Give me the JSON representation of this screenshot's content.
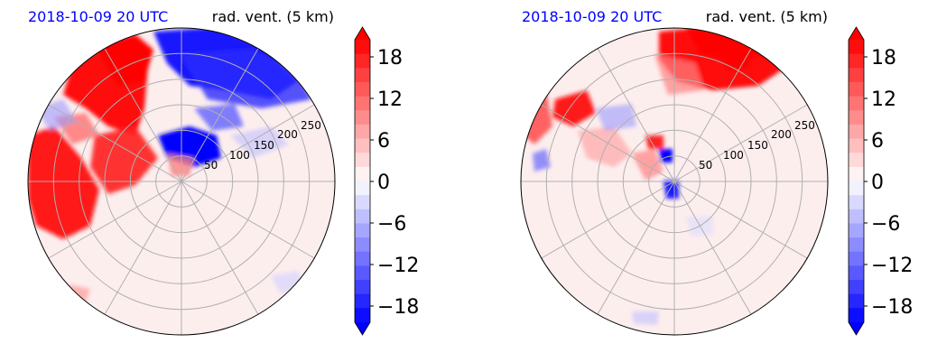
{
  "chart_data": [
    {
      "type": "heatmap",
      "projection": "polar",
      "title_left": "2018-10-09 20 UTC",
      "title_right": "rad. vent. (5 km)",
      "title_left_color": "#0000ff",
      "radial_ticks": [
        "50",
        "100",
        "150",
        "200",
        "250"
      ],
      "rlim": [
        0,
        300
      ],
      "grid": true,
      "colorbar": {
        "range": [
          -20,
          20
        ],
        "extend": "both",
        "ticks": [
          -18,
          -12,
          -6,
          0,
          6,
          12,
          18
        ],
        "tick_labels": [
          "−18",
          "−12",
          "−6",
          "0",
          "6",
          "12",
          "18"
        ],
        "cmap": "bwr",
        "levels": 20
      },
      "field_summary": {
        "positive_regions_deg": [
          [
            120,
            180
          ],
          [
            210,
            240
          ]
        ],
        "negative_regions_deg": [
          [
            55,
            110
          ],
          [
            20,
            40
          ]
        ],
        "peak_value": 20,
        "min_value": -20
      }
    },
    {
      "type": "heatmap",
      "projection": "polar",
      "title_left": "2018-10-09 20 UTC",
      "title_right": "rad. vent. (5 km)",
      "title_left_color": "#0000ff",
      "radial_ticks": [
        "50",
        "100",
        "150",
        "200",
        "250"
      ],
      "rlim": [
        0,
        300
      ],
      "grid": true,
      "colorbar": {
        "range": [
          -20,
          20
        ],
        "extend": "both",
        "ticks": [
          -18,
          -12,
          -6,
          0,
          6,
          12,
          18
        ],
        "tick_labels": [
          "−18",
          "−12",
          "−6",
          "0",
          "6",
          "12",
          "18"
        ],
        "cmap": "bwr",
        "levels": 20
      },
      "field_summary": {
        "positive_regions_deg": [
          [
            65,
            105
          ],
          [
            140,
            160
          ]
        ],
        "negative_regions_deg": [
          [
            250,
            290
          ]
        ],
        "peak_value": 20,
        "min_value": -20
      }
    }
  ]
}
